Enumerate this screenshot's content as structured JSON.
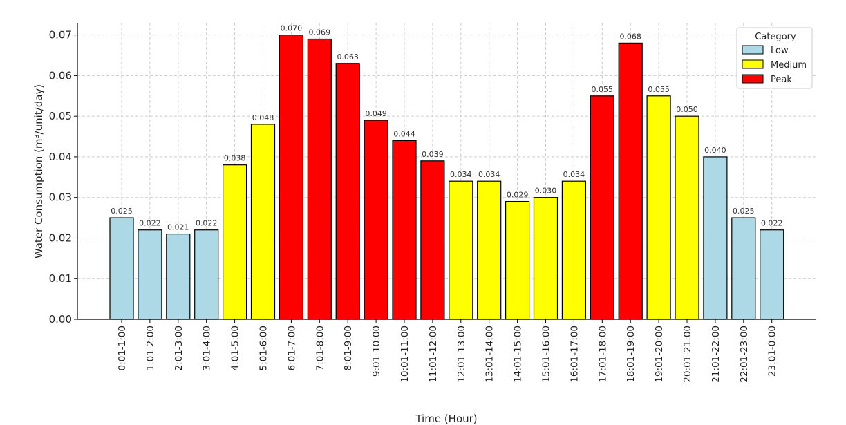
{
  "chart_data": {
    "type": "bar",
    "xlabel": "Time (Hour)",
    "ylabel": "Water Consumption (m³/unit/day)",
    "ylim": [
      0,
      0.073
    ],
    "yticks": [
      0.0,
      0.01,
      0.02,
      0.03,
      0.04,
      0.05,
      0.06,
      0.07
    ],
    "ytick_labels": [
      "0.00",
      "0.01",
      "0.02",
      "0.03",
      "0.04",
      "0.05",
      "0.06",
      "0.07"
    ],
    "grid": true,
    "legend": {
      "title": "Category",
      "placement": "top-right",
      "entries": [
        {
          "name": "Low",
          "color": "#add8e6"
        },
        {
          "name": "Medium",
          "color": "#ffff00"
        },
        {
          "name": "Peak",
          "color": "#ff0000"
        }
      ]
    },
    "categories": [
      "0:01-1:00",
      "1:01-2:00",
      "2:01-3:00",
      "3:01-4:00",
      "4:01-5:00",
      "5:01-6:00",
      "6:01-7:00",
      "7:01-8:00",
      "8:01-9:00",
      "9:01-10:00",
      "10:01-11:00",
      "11:01-12:00",
      "12:01-13:00",
      "13:01-14:00",
      "14:01-15:00",
      "15:01-16:00",
      "16:01-17:00",
      "17:01-18:00",
      "18:01-19:00",
      "19:01-20:00",
      "20:01-21:00",
      "21:01-22:00",
      "22:01-23:00",
      "23:01-0:00"
    ],
    "values": [
      0.025,
      0.022,
      0.021,
      0.022,
      0.038,
      0.048,
      0.07,
      0.069,
      0.063,
      0.049,
      0.044,
      0.039,
      0.034,
      0.034,
      0.029,
      0.03,
      0.034,
      0.055,
      0.068,
      0.055,
      0.05,
      0.04,
      0.025,
      0.022
    ],
    "value_labels": [
      "0.025",
      "0.022",
      "0.021",
      "0.022",
      "0.038",
      "0.048",
      "0.070",
      "0.069",
      "0.063",
      "0.049",
      "0.044",
      "0.039",
      "0.034",
      "0.034",
      "0.029",
      "0.030",
      "0.034",
      "0.055",
      "0.068",
      "0.055",
      "0.050",
      "0.040",
      "0.025",
      "0.022"
    ],
    "bar_categories": [
      "Low",
      "Low",
      "Low",
      "Low",
      "Medium",
      "Medium",
      "Peak",
      "Peak",
      "Peak",
      "Peak",
      "Peak",
      "Peak",
      "Medium",
      "Medium",
      "Medium",
      "Medium",
      "Medium",
      "Peak",
      "Peak",
      "Medium",
      "Medium",
      "Low",
      "Low",
      "Low"
    ]
  }
}
